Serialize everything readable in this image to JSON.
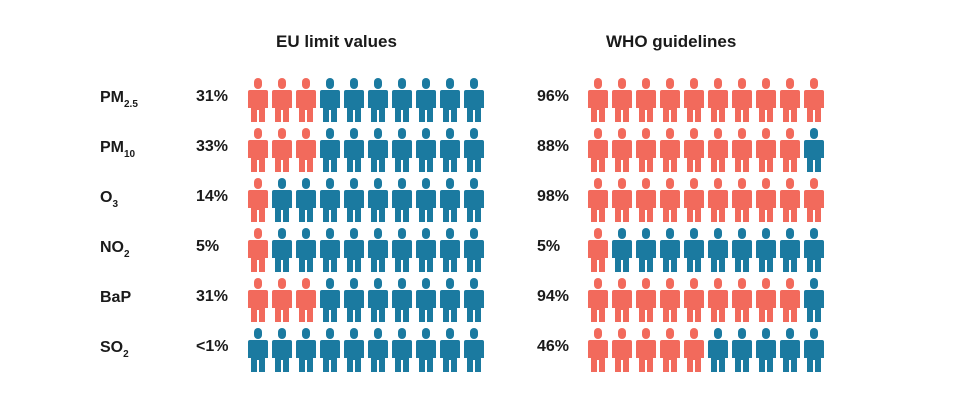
{
  "colors": {
    "exceeding": "#f26a5c",
    "other": "#1b7aa0"
  },
  "chart_data": [
    {
      "type": "pictogram",
      "title": "EU limit values",
      "icons_per_row": 10,
      "rows": [
        {
          "pollutant": "PM",
          "subscript": "2.5",
          "label": "31%",
          "highlighted_icons": 3
        },
        {
          "pollutant": "PM",
          "subscript": "10",
          "label": "33%",
          "highlighted_icons": 3
        },
        {
          "pollutant": "O",
          "subscript": "3",
          "label": "14%",
          "highlighted_icons": 1
        },
        {
          "pollutant": "NO",
          "subscript": "2",
          "label": "5%",
          "highlighted_icons": 1
        },
        {
          "pollutant": "BaP",
          "subscript": "",
          "label": "31%",
          "highlighted_icons": 3
        },
        {
          "pollutant": "SO",
          "subscript": "2",
          "label": "<1%",
          "highlighted_icons": 0
        }
      ]
    },
    {
      "type": "pictogram",
      "title": "WHO guidelines",
      "icons_per_row": 10,
      "rows": [
        {
          "pollutant": "PM",
          "subscript": "2.5",
          "label": "96%",
          "highlighted_icons": 10
        },
        {
          "pollutant": "PM",
          "subscript": "10",
          "label": "88%",
          "highlighted_icons": 9
        },
        {
          "pollutant": "O",
          "subscript": "3",
          "label": "98%",
          "highlighted_icons": 10
        },
        {
          "pollutant": "NO",
          "subscript": "2",
          "label": "5%",
          "highlighted_icons": 1
        },
        {
          "pollutant": "BaP",
          "subscript": "",
          "label": "94%",
          "highlighted_icons": 9
        },
        {
          "pollutant": "SO",
          "subscript": "2",
          "label": "46%",
          "highlighted_icons": 5
        }
      ]
    }
  ]
}
